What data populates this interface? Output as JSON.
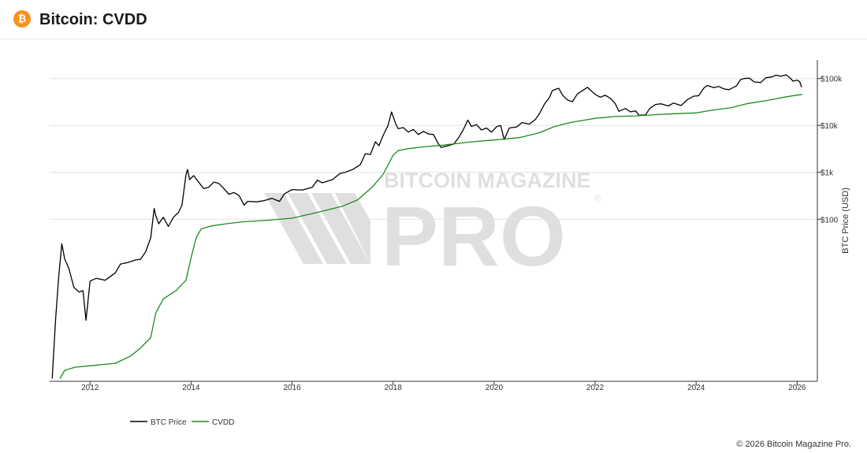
{
  "header": {
    "title": "Bitcoin: CVDD",
    "icon": "bitcoin-icon",
    "icon_glyph": "₿",
    "icon_color": "#f7931a"
  },
  "watermark": {
    "line1": "BITCOIN MAGAZINE",
    "line2": "PRO",
    "reg": "®"
  },
  "footer": {
    "copyright": "© 2026 Bitcoin Magazine Pro."
  },
  "chart_data": {
    "type": "line",
    "y_scale": "log",
    "xlim": [
      2011.2,
      2026.4
    ],
    "ylim": [
      0.035,
      250000
    ],
    "ylabel": "BTC Price (USD)",
    "xlabel": "",
    "x_ticks": [
      2012,
      2014,
      2016,
      2018,
      2020,
      2022,
      2024,
      2026
    ],
    "y_ticks": [
      {
        "value": 100,
        "label": "$100"
      },
      {
        "value": 1000,
        "label": "$1k"
      },
      {
        "value": 10000,
        "label": "$10k"
      },
      {
        "value": 100000,
        "label": "$100k"
      }
    ],
    "grid": true,
    "legend_position": "bottom-left",
    "series": [
      {
        "name": "BTC Price",
        "color": "#000000",
        "points": [
          [
            2011.25,
            0.04
          ],
          [
            2011.32,
            0.8
          ],
          [
            2011.38,
            6
          ],
          [
            2011.44,
            30
          ],
          [
            2011.5,
            14
          ],
          [
            2011.58,
            9
          ],
          [
            2011.68,
            3.5
          ],
          [
            2011.78,
            2.8
          ],
          [
            2011.86,
            3.0
          ],
          [
            2011.92,
            0.7
          ],
          [
            2012.0,
            4.8
          ],
          [
            2012.12,
            5.5
          ],
          [
            2012.3,
            5.0
          ],
          [
            2012.5,
            7.2
          ],
          [
            2012.6,
            11
          ],
          [
            2012.75,
            12
          ],
          [
            2012.9,
            13.5
          ],
          [
            2013.0,
            14
          ],
          [
            2013.1,
            20
          ],
          [
            2013.2,
            40
          ],
          [
            2013.27,
            170
          ],
          [
            2013.3,
            120
          ],
          [
            2013.36,
            80
          ],
          [
            2013.45,
            110
          ],
          [
            2013.55,
            70
          ],
          [
            2013.65,
            110
          ],
          [
            2013.75,
            140
          ],
          [
            2013.82,
            200
          ],
          [
            2013.9,
            900
          ],
          [
            2013.93,
            1150
          ],
          [
            2013.97,
            700
          ],
          [
            2014.05,
            850
          ],
          [
            2014.15,
            620
          ],
          [
            2014.25,
            450
          ],
          [
            2014.35,
            480
          ],
          [
            2014.45,
            620
          ],
          [
            2014.55,
            580
          ],
          [
            2014.65,
            450
          ],
          [
            2014.75,
            340
          ],
          [
            2014.85,
            370
          ],
          [
            2014.95,
            320
          ],
          [
            2015.05,
            200
          ],
          [
            2015.12,
            240
          ],
          [
            2015.3,
            235
          ],
          [
            2015.45,
            250
          ],
          [
            2015.6,
            280
          ],
          [
            2015.75,
            240
          ],
          [
            2015.85,
            350
          ],
          [
            2016.0,
            430
          ],
          [
            2016.2,
            420
          ],
          [
            2016.4,
            480
          ],
          [
            2016.5,
            680
          ],
          [
            2016.6,
            600
          ],
          [
            2016.8,
            700
          ],
          [
            2016.95,
            950
          ],
          [
            2017.05,
            1000
          ],
          [
            2017.2,
            1150
          ],
          [
            2017.35,
            1450
          ],
          [
            2017.45,
            2500
          ],
          [
            2017.55,
            2400
          ],
          [
            2017.65,
            4500
          ],
          [
            2017.72,
            3700
          ],
          [
            2017.8,
            6000
          ],
          [
            2017.9,
            10000
          ],
          [
            2017.97,
            19500
          ],
          [
            2018.05,
            11000
          ],
          [
            2018.1,
            8500
          ],
          [
            2018.2,
            9000
          ],
          [
            2018.3,
            7200
          ],
          [
            2018.4,
            8200
          ],
          [
            2018.5,
            6400
          ],
          [
            2018.6,
            7500
          ],
          [
            2018.7,
            6600
          ],
          [
            2018.8,
            6400
          ],
          [
            2018.9,
            4000
          ],
          [
            2018.95,
            3400
          ],
          [
            2019.05,
            3600
          ],
          [
            2019.2,
            4000
          ],
          [
            2019.3,
            5500
          ],
          [
            2019.4,
            8500
          ],
          [
            2019.48,
            13000
          ],
          [
            2019.55,
            9500
          ],
          [
            2019.65,
            10400
          ],
          [
            2019.75,
            8000
          ],
          [
            2019.85,
            8800
          ],
          [
            2019.95,
            7200
          ],
          [
            2020.05,
            9400
          ],
          [
            2020.13,
            10000
          ],
          [
            2020.2,
            5000
          ],
          [
            2020.3,
            8800
          ],
          [
            2020.45,
            9300
          ],
          [
            2020.55,
            11500
          ],
          [
            2020.7,
            10700
          ],
          [
            2020.82,
            13500
          ],
          [
            2020.9,
            18000
          ],
          [
            2021.0,
            29000
          ],
          [
            2021.1,
            40000
          ],
          [
            2021.15,
            55000
          ],
          [
            2021.28,
            62000
          ],
          [
            2021.35,
            45000
          ],
          [
            2021.45,
            35000
          ],
          [
            2021.55,
            32000
          ],
          [
            2021.65,
            47000
          ],
          [
            2021.75,
            55000
          ],
          [
            2021.85,
            65000
          ],
          [
            2021.92,
            55000
          ],
          [
            2022.0,
            46000
          ],
          [
            2022.1,
            40000
          ],
          [
            2022.2,
            44000
          ],
          [
            2022.3,
            38000
          ],
          [
            2022.4,
            29000
          ],
          [
            2022.47,
            20000
          ],
          [
            2022.6,
            23000
          ],
          [
            2022.7,
            19500
          ],
          [
            2022.8,
            20500
          ],
          [
            2022.87,
            16500
          ],
          [
            2023.0,
            16800
          ],
          [
            2023.08,
            23000
          ],
          [
            2023.2,
            28000
          ],
          [
            2023.3,
            29000
          ],
          [
            2023.45,
            26000
          ],
          [
            2023.55,
            30000
          ],
          [
            2023.7,
            26500
          ],
          [
            2023.82,
            35000
          ],
          [
            2023.95,
            42000
          ],
          [
            2024.05,
            43000
          ],
          [
            2024.15,
            62000
          ],
          [
            2024.22,
            71000
          ],
          [
            2024.35,
            64000
          ],
          [
            2024.45,
            68000
          ],
          [
            2024.55,
            60000
          ],
          [
            2024.65,
            58000
          ],
          [
            2024.8,
            70000
          ],
          [
            2024.88,
            95000
          ],
          [
            2024.95,
            100000
          ],
          [
            2025.05,
            102000
          ],
          [
            2025.15,
            85000
          ],
          [
            2025.28,
            82000
          ],
          [
            2025.38,
            104000
          ],
          [
            2025.5,
            108000
          ],
          [
            2025.58,
            118000
          ],
          [
            2025.68,
            112000
          ],
          [
            2025.78,
            120000
          ],
          [
            2025.85,
            105000
          ],
          [
            2025.92,
            88000
          ],
          [
            2026.0,
            92000
          ],
          [
            2026.05,
            86000
          ],
          [
            2026.09,
            65000
          ]
        ]
      },
      {
        "name": "CVDD",
        "color": "#1e8a1e",
        "points": [
          [
            2011.4,
            0.04
          ],
          [
            2011.5,
            0.06
          ],
          [
            2011.7,
            0.07
          ],
          [
            2012.0,
            0.075
          ],
          [
            2012.5,
            0.085
          ],
          [
            2012.8,
            0.12
          ],
          [
            2013.0,
            0.18
          ],
          [
            2013.2,
            0.3
          ],
          [
            2013.3,
            1.0
          ],
          [
            2013.45,
            2.0
          ],
          [
            2013.7,
            3.0
          ],
          [
            2013.9,
            5.0
          ],
          [
            2014.0,
            15
          ],
          [
            2014.1,
            40
          ],
          [
            2014.2,
            62
          ],
          [
            2014.4,
            72
          ],
          [
            2014.7,
            80
          ],
          [
            2015.0,
            88
          ],
          [
            2015.5,
            95
          ],
          [
            2016.0,
            105
          ],
          [
            2016.5,
            140
          ],
          [
            2017.0,
            190
          ],
          [
            2017.3,
            260
          ],
          [
            2017.6,
            500
          ],
          [
            2017.8,
            900
          ],
          [
            2018.0,
            2300
          ],
          [
            2018.1,
            2900
          ],
          [
            2018.3,
            3200
          ],
          [
            2018.6,
            3500
          ],
          [
            2019.0,
            3800
          ],
          [
            2019.5,
            4400
          ],
          [
            2020.0,
            4900
          ],
          [
            2020.5,
            5500
          ],
          [
            2020.9,
            7000
          ],
          [
            2021.2,
            9500
          ],
          [
            2021.5,
            11500
          ],
          [
            2021.8,
            13000
          ],
          [
            2022.0,
            14200
          ],
          [
            2022.4,
            15500
          ],
          [
            2022.8,
            16000
          ],
          [
            2023.2,
            17000
          ],
          [
            2023.6,
            17800
          ],
          [
            2024.0,
            18500
          ],
          [
            2024.3,
            21000
          ],
          [
            2024.7,
            24000
          ],
          [
            2025.0,
            29000
          ],
          [
            2025.4,
            34000
          ],
          [
            2025.8,
            41000
          ],
          [
            2026.1,
            46000
          ]
        ]
      }
    ]
  }
}
